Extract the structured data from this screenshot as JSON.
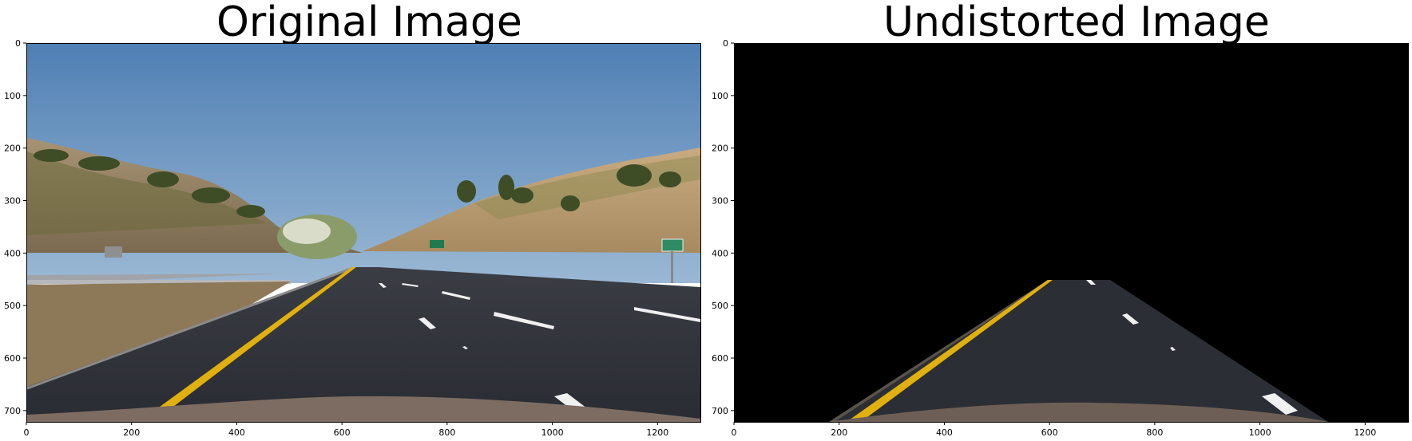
{
  "panels": [
    {
      "title": "Original Image",
      "x_ticks": [
        "0",
        "200",
        "400",
        "600",
        "800",
        "1000",
        "1200"
      ],
      "y_ticks": [
        "0",
        "100",
        "200",
        "300",
        "400",
        "500",
        "600",
        "700"
      ]
    },
    {
      "title": "Undistorted Image",
      "x_ticks": [
        "0",
        "200",
        "400",
        "600",
        "800",
        "1000",
        "1200"
      ],
      "y_ticks": [
        "0",
        "100",
        "200",
        "300",
        "400",
        "500",
        "600",
        "700"
      ]
    }
  ],
  "image_extent": {
    "width": 1280,
    "height": 720
  },
  "scene": {
    "sign_right_text": "",
    "colors": {
      "sky": "#5a8cc0",
      "road": "#2b2d33",
      "lane_yellow": "#e0b010",
      "lane_white": "#f0f0f0",
      "masked": "#000000"
    }
  }
}
